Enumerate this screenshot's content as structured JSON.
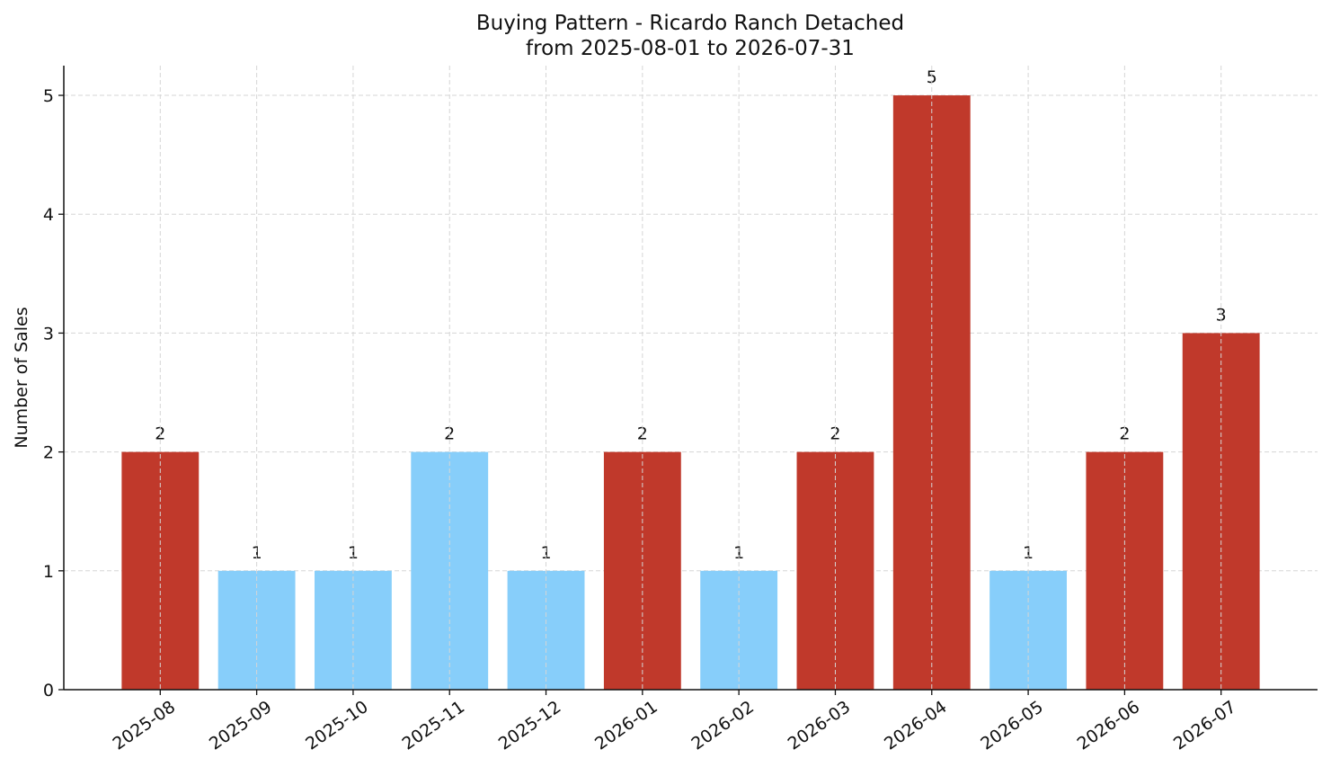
{
  "chart_data": {
    "type": "bar",
    "title": "Buying Pattern - Ricardo Ranch Detached",
    "subtitle": "from 2025-08-01 to 2026-07-31",
    "y_label": "Number of Sales",
    "categories": [
      "2025-08",
      "2025-09",
      "2025-10",
      "2025-11",
      "2025-12",
      "2026-01",
      "2026-02",
      "2026-03",
      "2026-04",
      "2026-05",
      "2026-06",
      "2026-07"
    ],
    "values": [
      2,
      1,
      1,
      2,
      1,
      2,
      1,
      2,
      5,
      1,
      2,
      3
    ],
    "colors": [
      "#c0392b",
      "#87cefa",
      "#87cefa",
      "#87cefa",
      "#87cefa",
      "#c0392b",
      "#87cefa",
      "#c0392b",
      "#c0392b",
      "#87cefa",
      "#c0392b",
      "#c0392b"
    ],
    "ylim": [
      0,
      5.25
    ],
    "yticks": [
      0,
      1,
      2,
      3,
      4,
      5
    ],
    "grid": true
  }
}
